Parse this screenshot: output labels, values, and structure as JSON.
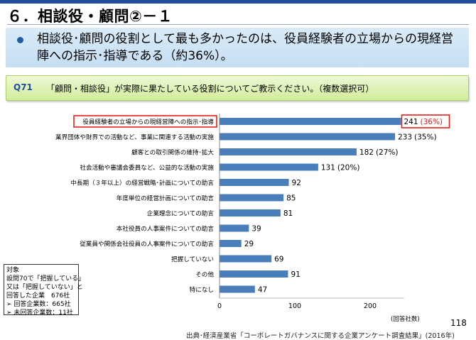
{
  "header": {
    "title": "６．相談役・顧問②－１"
  },
  "summary": {
    "text": "相談役･顧問の役割として最も多かったのは、役員経験者の立場からの現経営陣への指示･指導である（約36%）。"
  },
  "question": {
    "number": "Q71",
    "text": "「顧問・相談役」が実際に果たしている役割についてご教示ください。（複数選択可）"
  },
  "chart_data": {
    "type": "bar",
    "orientation": "horizontal",
    "xlim": [
      0,
      241
    ],
    "xticks": [
      0,
      100,
      200
    ],
    "xlabel": "(回答社数)",
    "grid": false,
    "categories": [
      "役員経験者の立場からの現経営陣への指示･指導",
      "業界団体や財界での活動など、事業に関連する活動の実施",
      "顧客との取引関係の維持･拡大",
      "社会活動や審議会委員など、公益的な活動の実施",
      "中長期（３年以上）の経営戦略･計画についての助言",
      "年度単位の経営計画についての助言",
      "企業理念についての助言",
      "本社役員の人事案件についての助言",
      "従業員や関係会社役員の人事案件についての助言",
      "把握していない",
      "その他",
      "特になし"
    ],
    "values": [
      241,
      233,
      182,
      131,
      92,
      85,
      81,
      39,
      29,
      69,
      91,
      47
    ],
    "data_labels": [
      "241",
      "233",
      "182",
      "131",
      "92",
      "85",
      "81",
      "39",
      "29",
      "69",
      "91",
      "47"
    ],
    "percent_labels": [
      "(36%)",
      "(35%)",
      "(27%)",
      "(20%)",
      "",
      "",
      "",
      "",
      "",
      "",
      "",
      ""
    ],
    "highlight_index": 0,
    "bar_color": "#4a7ebb",
    "highlight_color": "#e0211b"
  },
  "target": {
    "lines": [
      "対象",
      "設問70で「把握している」",
      "又は「把握していない」と",
      "回答した企業　676社",
      "➢ 回答企業数：665社",
      "➢ 未回答企業数：11社"
    ]
  },
  "page_number": "118",
  "source": "出典･経済産業省「コーポレートガバナンスに関する企業アンケート調査結果」(2016年)"
}
